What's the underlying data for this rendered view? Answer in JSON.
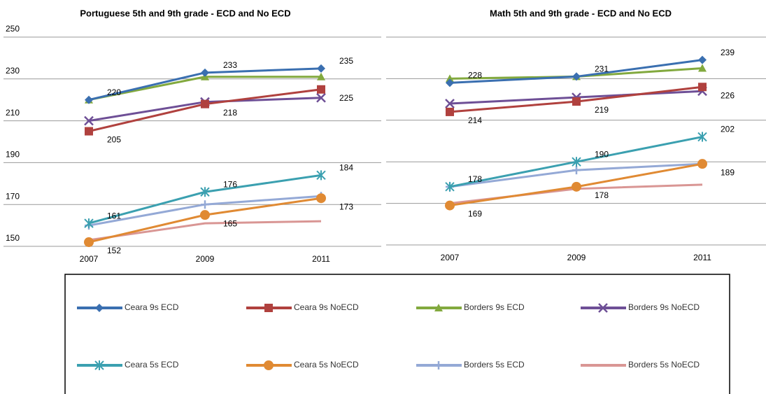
{
  "legend": {
    "series": [
      {
        "name": "Ceara 9s ECD",
        "color": "#3a6fb0",
        "marker": "diamond"
      },
      {
        "name": "Ceara 9s NoECD",
        "color": "#b0413e",
        "marker": "square"
      },
      {
        "name": "Borders 9s ECD",
        "color": "#82a93e",
        "marker": "triangle"
      },
      {
        "name": "Borders 9s NoECD",
        "color": "#6e4f96",
        "marker": "x"
      },
      {
        "name": "Ceara 5s ECD",
        "color": "#3ba0b0",
        "marker": "asterisk"
      },
      {
        "name": "Ceara 5s NoECD",
        "color": "#e08a33",
        "marker": "circle"
      },
      {
        "name": "Borders 5s ECD",
        "color": "#94a9d6",
        "marker": "plus"
      },
      {
        "name": "Borders 5s NoECD",
        "color": "#d99694",
        "marker": "none"
      }
    ]
  },
  "chart_data": [
    {
      "type": "line",
      "title": "Portuguese 5th and  9th grade - ECD and No ECD",
      "categories": [
        "2007",
        "2009",
        "2011"
      ],
      "ylim": [
        150,
        250
      ],
      "yticks": [
        150,
        170,
        190,
        210,
        230,
        250
      ],
      "grid": true,
      "series": [
        {
          "values": [
            220,
            233,
            235
          ],
          "labeled": true
        },
        {
          "values": [
            205,
            218,
            225
          ],
          "labeled": true
        },
        {
          "values": [
            220,
            231,
            231
          ],
          "labeled": false
        },
        {
          "values": [
            210,
            219,
            221
          ],
          "labeled": false
        },
        {
          "values": [
            161,
            176,
            184
          ],
          "labeled": true
        },
        {
          "values": [
            152,
            165,
            173
          ],
          "labeled": true
        },
        {
          "values": [
            160,
            170,
            174
          ],
          "labeled": false
        },
        {
          "values": [
            153,
            161,
            162
          ],
          "labeled": false
        }
      ]
    },
    {
      "type": "line",
      "title": "Math 5th and 9th grade - ECD and No ECD",
      "categories": [
        "2007",
        "2009",
        "2011"
      ],
      "ylim": [
        150,
        250
      ],
      "ygrid": [
        150,
        170,
        190,
        210,
        230,
        250
      ],
      "grid": true,
      "series": [
        {
          "values": [
            228,
            231,
            239
          ],
          "labeled": true
        },
        {
          "values": [
            214,
            219,
            226
          ],
          "labeled": true
        },
        {
          "values": [
            230,
            231,
            235
          ],
          "labeled": false
        },
        {
          "values": [
            218,
            221,
            224
          ],
          "labeled": false
        },
        {
          "values": [
            178,
            190,
            202
          ],
          "labeled": true
        },
        {
          "values": [
            169,
            178,
            189
          ],
          "labeled": true
        },
        {
          "values": [
            178,
            186,
            189
          ],
          "labeled": false
        },
        {
          "values": [
            170,
            177,
            179
          ],
          "labeled": false
        }
      ]
    }
  ]
}
